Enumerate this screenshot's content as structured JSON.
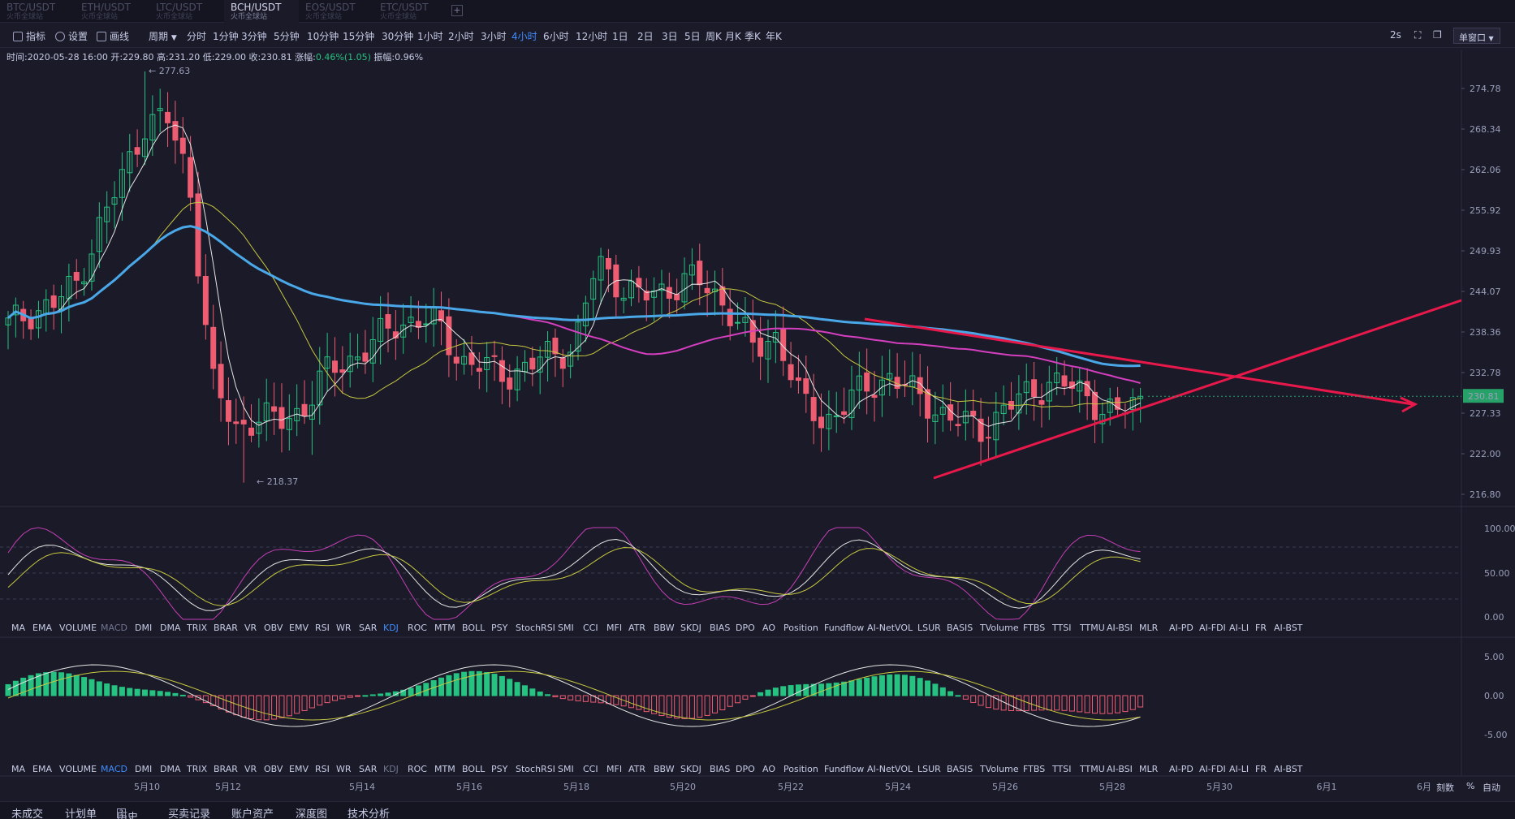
{
  "tabs": [
    {
      "name": "BTC/USDT",
      "sub": "火币全球站",
      "active": false
    },
    {
      "name": "ETH/USDT",
      "sub": "火币全球站",
      "active": false
    },
    {
      "name": "LTC/USDT",
      "sub": "火币全球站",
      "active": false
    },
    {
      "name": "BCH/USDT",
      "sub": "火币全球站",
      "active": true
    },
    {
      "name": "EOS/USDT",
      "sub": "火币全球站",
      "active": false
    },
    {
      "name": "ETC/USDT",
      "sub": "火币全球站",
      "active": false
    }
  ],
  "tab_add": "+",
  "toolbar": {
    "indicator": "指标",
    "settings": "设置",
    "draw": "画线",
    "period": "周期",
    "periods": [
      "分时",
      "1分钟",
      "3分钟",
      "5分钟",
      "10分钟",
      "15分钟",
      "30分钟",
      "1小时",
      "2小时",
      "3小时",
      "4小时",
      "6小时",
      "12小时",
      "1日",
      "2日",
      "3日",
      "5日",
      "周K",
      "月K",
      "季K",
      "年K"
    ],
    "active_period": "4小时",
    "refresh": "2s",
    "window_mode": "单窗口"
  },
  "info": {
    "time": "时间:2020-05-28 16:00",
    "open": "开:229.80",
    "high": "高:231.20",
    "low": "低:229.00",
    "close": "收:230.81",
    "change_label": "涨幅:",
    "change": "0.46%(1.05)",
    "amplitude": "振幅:0.96%"
  },
  "price_axis": [
    "274.78",
    "268.34",
    "262.06",
    "255.92",
    "249.93",
    "244.07",
    "238.36",
    "232.78",
    "227.33",
    "222.00",
    "216.80"
  ],
  "current_price": "230.81",
  "high_marker": "← 277.63",
  "low_marker": "← 218.37",
  "kdj_axis": [
    "100.00",
    "50.00",
    "0.00"
  ],
  "macd_axis": [
    "5.00",
    "0.00",
    "-5.00"
  ],
  "date_axis": [
    "5月10",
    "5月12",
    "5月14",
    "5月16",
    "5月18",
    "5月20",
    "5月22",
    "5月24",
    "5月26",
    "5月28",
    "5月30",
    "6月1",
    "6月"
  ],
  "indicators": [
    "MA",
    "EMA",
    "VOLUME",
    "MACD",
    "DMI",
    "DMA",
    "TRIX",
    "BRAR",
    "VR",
    "OBV",
    "EMV",
    "RSI",
    "WR",
    "SAR",
    "KDJ",
    "ROC",
    "MTM",
    "BOLL",
    "PSY",
    "StochRSI",
    "SMI",
    "CCI",
    "MFI",
    "ATR",
    "BBW",
    "SKDJ",
    "BIAS",
    "DPO",
    "AO",
    "Position",
    "Fundflow",
    "AI-NetVOL",
    "LSUR",
    "BASIS",
    "TVolume",
    "FTBS",
    "TTSI",
    "TTMU",
    "AI-BSI",
    "MLR",
    "AI-PD",
    "AI-FDI",
    "AI-LI",
    "FR",
    "AI-BST"
  ],
  "ind_bar1_active": "KDJ",
  "ind_bar2_active": "MACD",
  "axis_controls": {
    "scale": "刻数",
    "percent": "%",
    "auto": "自动"
  },
  "bottom_tabs": [
    "未成交",
    "计划单",
    "历史",
    "买卖记录",
    "账户资产",
    "深度图",
    "技术分析"
  ],
  "history_badge": "?",
  "colors": {
    "background": "#1a1a28",
    "up": "#26c281",
    "down": "#ee5c72",
    "ma_yellow": "#c8c840",
    "ma_white": "#e6e6e6",
    "ma_magenta": "#d43fbf",
    "ma_blue": "#4aa8e8",
    "trendline": "#e8194a",
    "accent": "#3f8cff"
  },
  "chart_data": {
    "type": "candlestick",
    "symbol": "BCH/USDT",
    "interval": "4小时",
    "ylim": [
      216.8,
      277.63
    ],
    "x_dates": [
      "5月10",
      "5月12",
      "5月14",
      "5月16",
      "5月18",
      "5月20",
      "5月22",
      "5月24",
      "5月26",
      "5月28"
    ],
    "close_trace": [
      241,
      243,
      244,
      247,
      255,
      262,
      270,
      271,
      262,
      233,
      226,
      228,
      227,
      229,
      234,
      236,
      238,
      241,
      242,
      241,
      236,
      235,
      234,
      235,
      237,
      238,
      250,
      247,
      245,
      246,
      248,
      246,
      243,
      237,
      240,
      230,
      227,
      230,
      232,
      234,
      231,
      229,
      227,
      226,
      229,
      231,
      233,
      232,
      230,
      228,
      230.81
    ]
  }
}
